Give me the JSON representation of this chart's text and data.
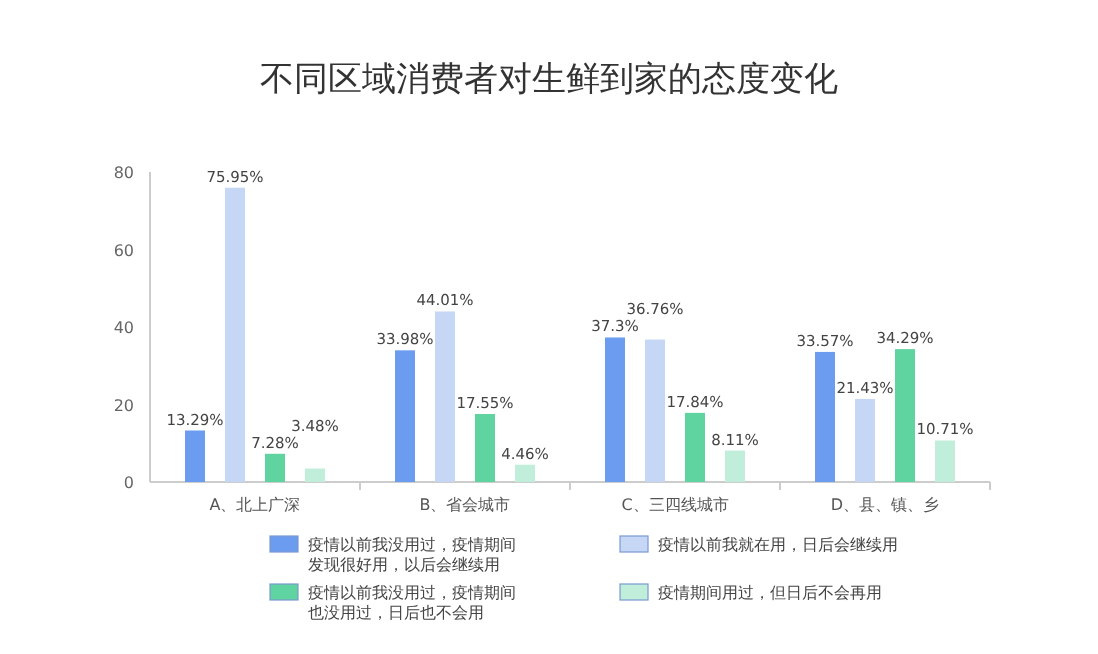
{
  "chart_data": {
    "type": "bar",
    "title": "不同区域消费者对生鲜到家的态度变化",
    "categories": [
      "A、北上广深",
      "B、省会城市",
      "C、三四线城市",
      "D、县、镇、乡"
    ],
    "series": [
      {
        "name": "疫情以前我没用过，疫情期间发现很好用，以后会继续用",
        "color": "#6b9cf0",
        "values": [
          13.29,
          33.98,
          37.3,
          33.57
        ],
        "value_labels": [
          "13.29%",
          "33.98%",
          "37.3%",
          "33.57%"
        ]
      },
      {
        "name": "疫情以前我就在用，日后会继续用",
        "color": "#c6d6f5",
        "values": [
          75.95,
          44.01,
          36.76,
          21.43
        ],
        "value_labels": [
          "75.95%",
          "44.01%",
          "36.76%",
          "21.43%"
        ]
      },
      {
        "name": "疫情以前我没用过，疫情期间也没用过，日后也不会用",
        "color": "#5fd3a0",
        "values": [
          7.28,
          17.55,
          17.84,
          34.29
        ],
        "value_labels": [
          "7.28%",
          "17.55%",
          "17.84%",
          "34.29%"
        ]
      },
      {
        "name": "疫情期间用过，但日后不会再用",
        "color": "#c0eedb",
        "values": [
          3.48,
          4.46,
          8.11,
          10.71
        ],
        "value_labels": [
          "3.48%",
          "4.46%",
          "8.11%",
          "10.71%"
        ]
      }
    ],
    "ylim": [
      0,
      80
    ],
    "yticks": [
      0,
      20,
      40,
      60,
      80
    ],
    "grid": false,
    "legend": "bottom"
  }
}
